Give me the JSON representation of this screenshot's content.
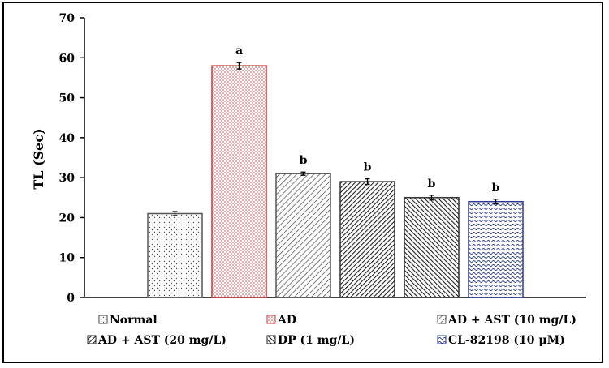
{
  "chart_data": {
    "type": "bar",
    "title": "",
    "xlabel": "",
    "ylabel": "TL (Sec)",
    "ylim": [
      0,
      70
    ],
    "yticks": [
      0,
      10,
      20,
      30,
      40,
      50,
      60,
      70
    ],
    "categories": [
      "Normal",
      "AD",
      "AD + AST (10 mg/L)",
      "AD + AST (20 mg/L)",
      "DP (1 mg/L)",
      "CL-82198 (10 μM)"
    ],
    "values": [
      21,
      58,
      31,
      29,
      25,
      24
    ],
    "errors": [
      0.5,
      0.8,
      0.4,
      0.7,
      0.6,
      0.6
    ],
    "significance": [
      "",
      "a",
      "b",
      "b",
      "b",
      "b"
    ],
    "legend_position": "bottom",
    "series_colors": [
      "#555555",
      "#c0393b",
      "#555555",
      "#333333",
      "#333333",
      "#2b3990"
    ]
  }
}
